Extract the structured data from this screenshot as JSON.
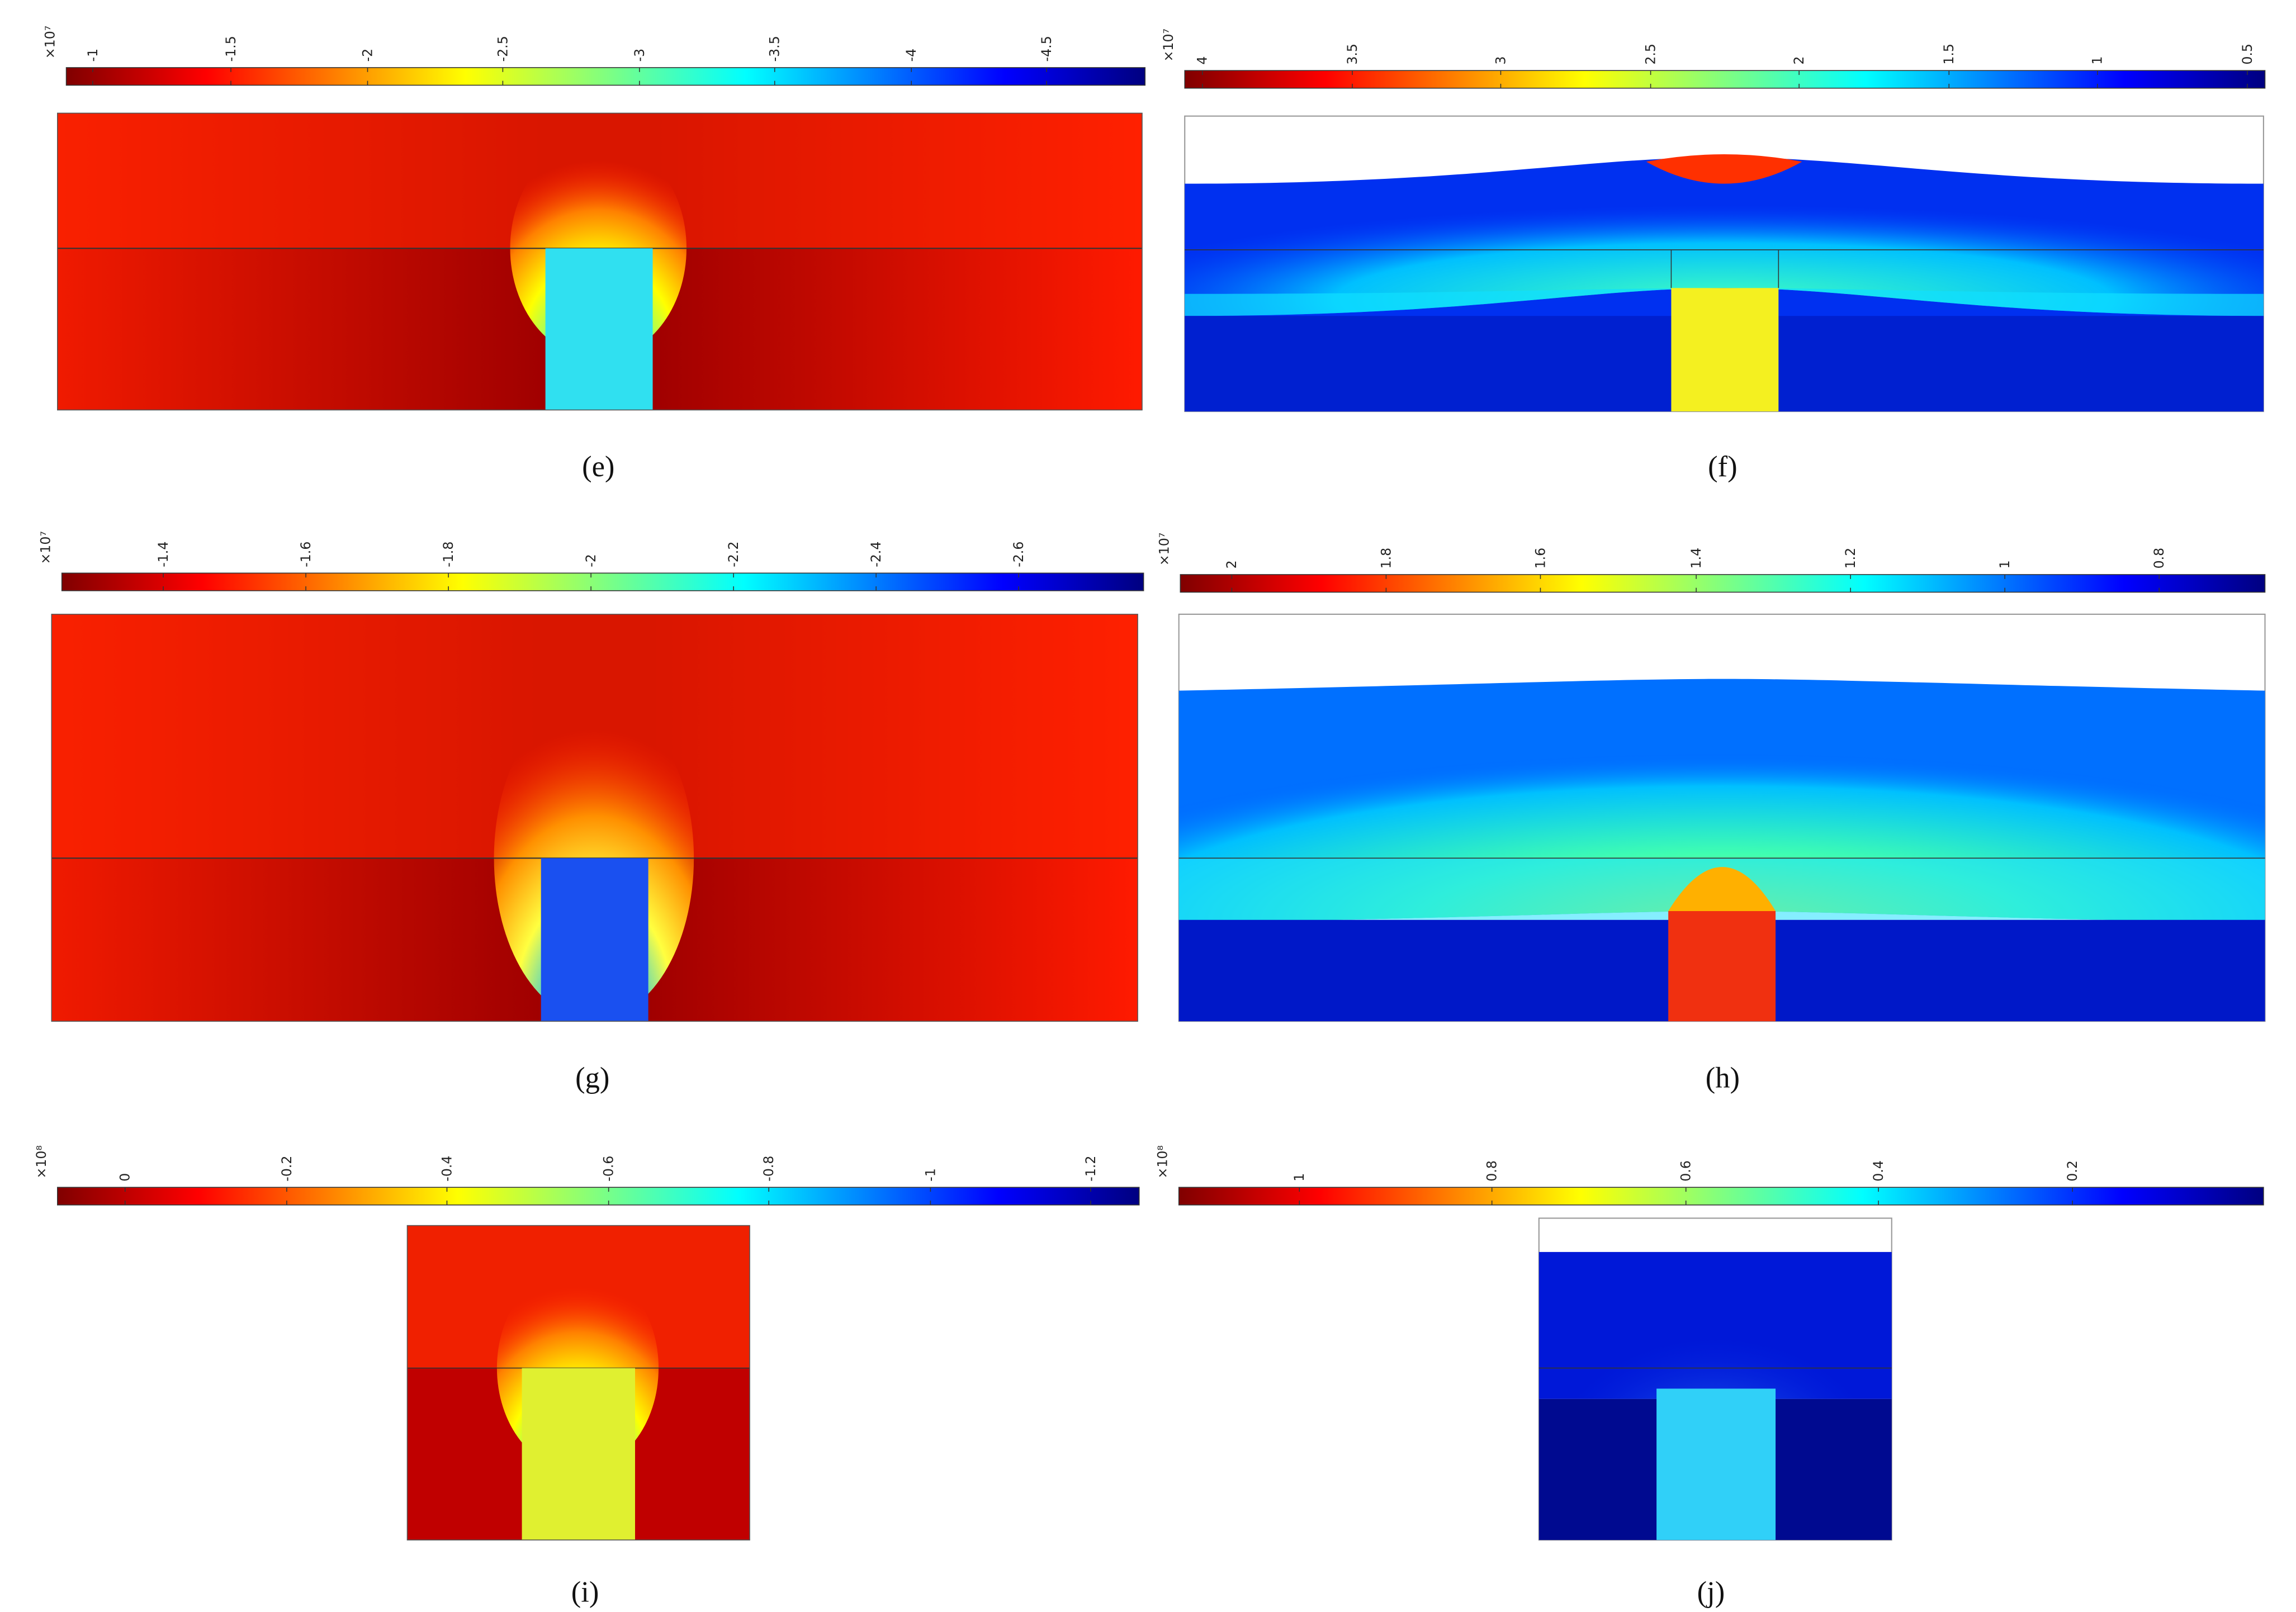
{
  "panels": [
    {
      "caption": "(e)",
      "colorbar": {
        "multiplier": "×10⁷",
        "ticks": [
          "-1",
          "-1.5",
          "-2",
          "-2.5",
          "-3",
          "-3.5",
          "-4",
          "-4.5"
        ]
      }
    },
    {
      "caption": "(f)",
      "colorbar": {
        "multiplier": "×10⁷",
        "ticks": [
          "4",
          "3.5",
          "3",
          "2.5",
          "2",
          "1.5",
          "1",
          "0.5"
        ]
      }
    },
    {
      "caption": "(g)",
      "colorbar": {
        "multiplier": "×10⁷",
        "ticks": [
          "-1.4",
          "-1.6",
          "-1.8",
          "-2",
          "-2.2",
          "-2.4",
          "-2.6"
        ]
      }
    },
    {
      "caption": "(h)",
      "colorbar": {
        "multiplier": "×10⁷",
        "ticks": [
          "2",
          "1.8",
          "1.6",
          "1.4",
          "1.2",
          "1",
          "0.8"
        ]
      }
    },
    {
      "caption": "(i)",
      "colorbar": {
        "multiplier": "×10⁸",
        "ticks": [
          "0",
          "-0.2",
          "-0.4",
          "-0.6",
          "-0.8",
          "-1",
          "-1.2"
        ]
      }
    },
    {
      "caption": "(j)",
      "colorbar": {
        "multiplier": "×10⁸",
        "ticks": [
          "1",
          "0.8",
          "0.6",
          "0.4",
          "0.2"
        ]
      }
    }
  ]
}
